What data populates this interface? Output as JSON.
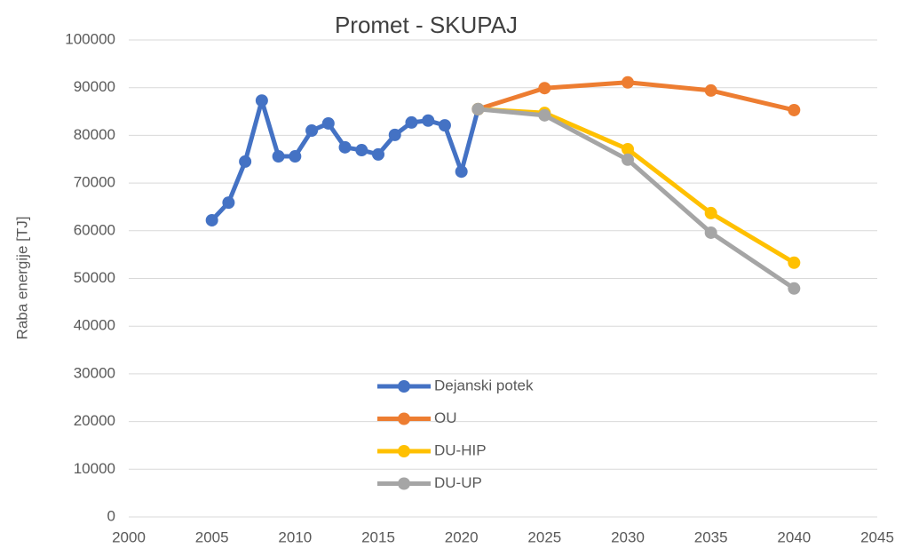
{
  "chart_data": {
    "type": "line",
    "title": "Promet - SKUPAJ",
    "y_label": "Raba energije [TJ]",
    "xlim": [
      2000,
      2045
    ],
    "xticks": [
      2000,
      2005,
      2010,
      2015,
      2020,
      2025,
      2030,
      2035,
      2040,
      2045
    ],
    "ylim": [
      0,
      100000
    ],
    "yticks": [
      0,
      10000,
      20000,
      30000,
      40000,
      50000,
      60000,
      70000,
      80000,
      90000,
      100000
    ],
    "grid": true,
    "legend": "center",
    "series": [
      {
        "name": "Dejanski potek",
        "color": "#4472c4",
        "x": [
          2005,
          2006,
          2007,
          2008,
          2009,
          2010,
          2011,
          2012,
          2013,
          2014,
          2015,
          2016,
          2017,
          2018,
          2019,
          2020,
          2021
        ],
        "values": [
          62200,
          65900,
          74500,
          87300,
          75600,
          75600,
          81000,
          82500,
          77500,
          76900,
          76000,
          80100,
          82700,
          83100,
          82100,
          72400,
          85500
        ]
      },
      {
        "name": "OU",
        "color": "#ed7d31",
        "x": [
          2021,
          2025,
          2030,
          2035,
          2040
        ],
        "values": [
          85500,
          89900,
          91100,
          89400,
          85300
        ]
      },
      {
        "name": "DU-HIP",
        "color": "#ffc000",
        "x": [
          2021,
          2025,
          2030,
          2035,
          2040
        ],
        "values": [
          85500,
          84700,
          77100,
          63700,
          53300
        ]
      },
      {
        "name": "DU-UP",
        "color": "#a5a5a5",
        "x": [
          2021,
          2025,
          2030,
          2035,
          2040
        ],
        "values": [
          85500,
          84200,
          74900,
          59600,
          47900
        ]
      }
    ]
  }
}
